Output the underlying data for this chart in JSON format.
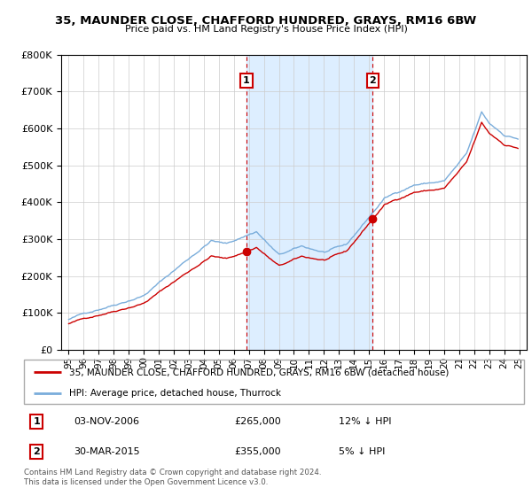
{
  "title1": "35, MAUNDER CLOSE, CHAFFORD HUNDRED, GRAYS, RM16 6BW",
  "title2": "Price paid vs. HM Land Registry's House Price Index (HPI)",
  "legend_line1": "35, MAUNDER CLOSE, CHAFFORD HUNDRED, GRAYS, RM16 6BW (detached house)",
  "legend_line2": "HPI: Average price, detached house, Thurrock",
  "annotation1_date": "03-NOV-2006",
  "annotation1_price": "£265,000",
  "annotation1_hpi": "12% ↓ HPI",
  "annotation2_date": "30-MAR-2015",
  "annotation2_price": "£355,000",
  "annotation2_hpi": "5% ↓ HPI",
  "footnote": "Contains HM Land Registry data © Crown copyright and database right 2024.\nThis data is licensed under the Open Government Licence v3.0.",
  "price_color": "#cc0000",
  "hpi_color": "#7aaddb",
  "shaded_color": "#ddeeff",
  "sale1_year": 2006.84,
  "sale1_price": 265000,
  "sale2_year": 2015.24,
  "sale2_price": 355000,
  "ylim": [
    0,
    800000
  ],
  "xlim_start": 1994.5,
  "xlim_end": 2025.5
}
